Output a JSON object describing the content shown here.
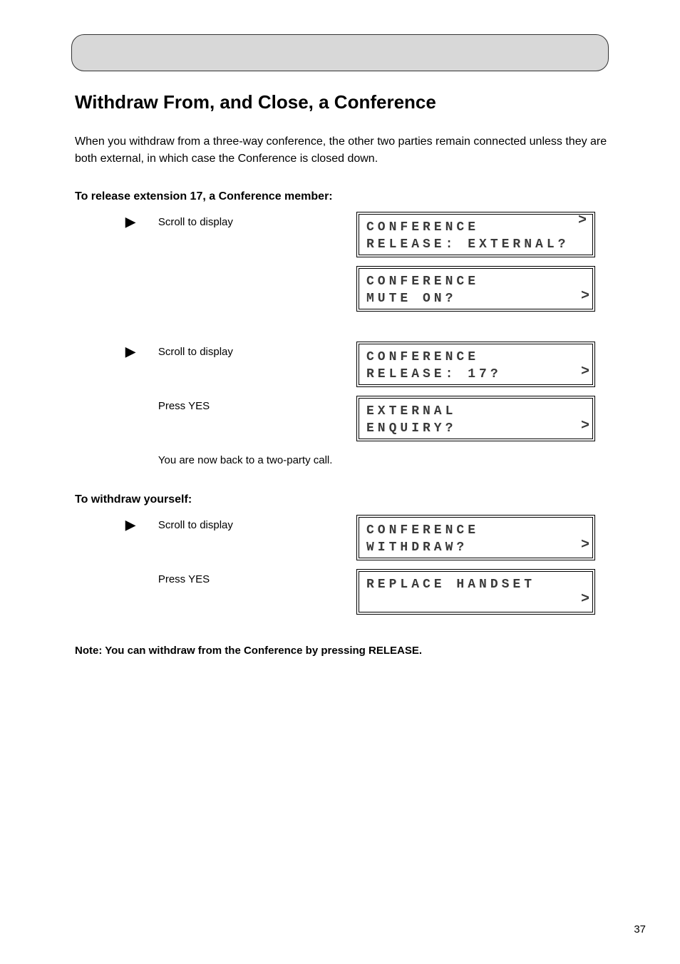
{
  "page_title": "Withdraw From, and Close, a Conference",
  "intro_text": "When you withdraw from a three-way conference, the other two parties remain connected unless they are both external, in which case the Conference is closed down.",
  "sections": [
    {
      "title": "To release extension 17, a Conference member:",
      "steps": [
        {
          "icon": "scroll",
          "text": "Scroll to display",
          "lcd": {
            "line1": "CONFERENCE",
            "line2": "RELEASE: EXTERNAL?",
            "arrow": ">",
            "arrow_pos": "up"
          }
        },
        {
          "icon": "none",
          "text": "",
          "lcd": {
            "line1": "CONFERENCE",
            "line2": "MUTE ON?",
            "arrow": ">",
            "arrow_pos": "down"
          }
        },
        {
          "icon": "spacer",
          "text": "",
          "lcd": null
        },
        {
          "icon": "scroll",
          "text": "Scroll to display",
          "lcd": {
            "line1": "CONFERENCE",
            "line2": "RELEASE: 17?",
            "arrow": ">",
            "arrow_pos": "down"
          }
        },
        {
          "icon": "none",
          "text": "Press YES",
          "lcd": {
            "line1": "EXTERNAL",
            "line2": "ENQUIRY?",
            "arrow": ">",
            "arrow_pos": "down"
          }
        }
      ],
      "note": "You are now back to a two-party call."
    },
    {
      "title": "To withdraw yourself:",
      "steps": [
        {
          "icon": "scroll",
          "text": "Scroll to display",
          "lcd": {
            "line1": "CONFERENCE",
            "line2": "WITHDRAW?",
            "arrow": ">",
            "arrow_pos": "down"
          }
        },
        {
          "icon": "none",
          "text": "Press YES",
          "lcd": {
            "line1": "REPLACE HANDSET",
            "line2": "",
            "arrow": ">",
            "arrow_pos": "down"
          }
        }
      ],
      "note": ""
    }
  ],
  "bottom_note": "Note: You can withdraw from the Conference by pressing RELEASE.",
  "page_number": "37",
  "colors": {
    "header_bg": "#d8d8d8",
    "text": "#000000",
    "lcd_text": "#3a3a3a"
  }
}
